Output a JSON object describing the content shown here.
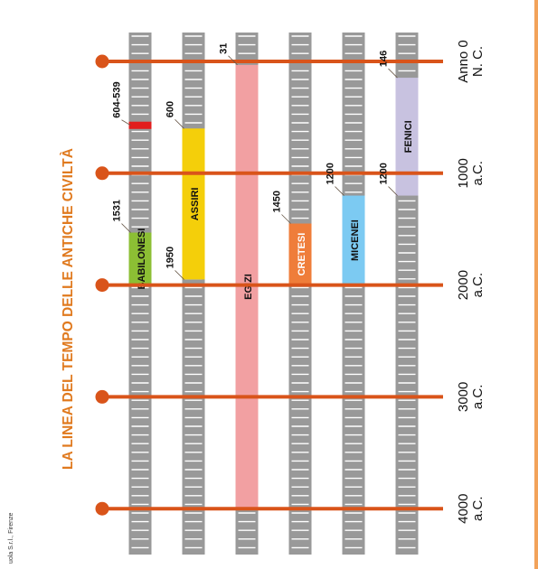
{
  "title": "LA LINEA DEL TEMPO DELLE ANTICHE CIVILTÀ",
  "credit": "uola S.r.l., Firenze",
  "colors": {
    "accent": "#e07a1f",
    "axis": "#d9541a",
    "track": "#999999",
    "tick": "#ffffff",
    "edge": "#f2a25a"
  },
  "axis_marks": [
    {
      "year": 0,
      "label_1": "Anno 0",
      "label_2": "N. C."
    },
    {
      "year": 1000,
      "label_1": "1000",
      "label_2": "a.C."
    },
    {
      "year": 2000,
      "label_1": "2000",
      "label_2": "a.C."
    },
    {
      "year": 3000,
      "label_1": "3000",
      "label_2": "a.C."
    },
    {
      "year": 4000,
      "label_1": "4000",
      "label_2": "a.C."
    }
  ],
  "civilizations": [
    {
      "name": "BABILONESI",
      "start": 2000,
      "end": 1531,
      "color": "#8cbf34",
      "text_color": "#111111",
      "labels": [
        "1531"
      ],
      "extra": {
        "start": 604,
        "end": 539,
        "color": "#e21d1d",
        "label": "604-539"
      }
    },
    {
      "name": "ASSIRI",
      "start": 1950,
      "end": 600,
      "color": "#f4cf0a",
      "text_color": "#111111",
      "labels": [
        "1950",
        "600"
      ]
    },
    {
      "name": "EGIZI",
      "start": 4000,
      "end": 31,
      "color": "#f2a0a2",
      "text_color": "#111111",
      "labels": [
        "31"
      ]
    },
    {
      "name": "CRETESI",
      "start": 2000,
      "end": 1450,
      "color": "#ef7d3a",
      "text_color": "#ffffff",
      "labels": [
        "1450"
      ]
    },
    {
      "name": "MICENEI",
      "start": 2000,
      "end": 1200,
      "color": "#7ccaf2",
      "text_color": "#111111",
      "labels": [
        "1200"
      ]
    },
    {
      "name": "FENICI",
      "start": 1200,
      "end": 146,
      "color": "#c8c2e0",
      "text_color": "#111111",
      "labels": [
        "1200",
        "146"
      ]
    }
  ]
}
